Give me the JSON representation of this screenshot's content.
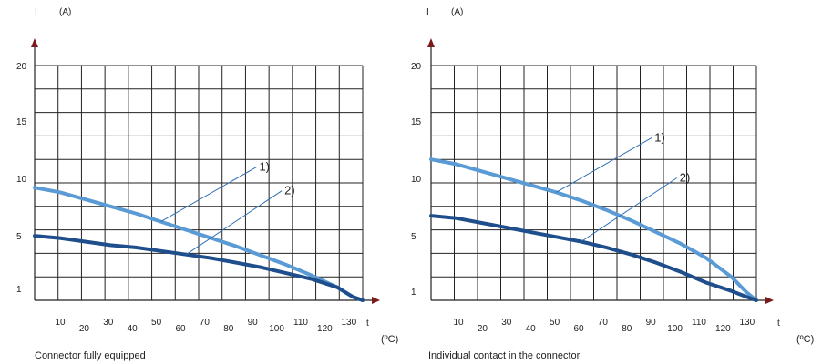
{
  "chart_data": [
    {
      "type": "line",
      "title": "Connector fully equipped",
      "ylabel": "I",
      "yunit": "(A)",
      "xlabel": "t",
      "xunit": "(ºC)",
      "ylim": [
        0,
        20
      ],
      "xlim": [
        0,
        130
      ],
      "ytick_labels": [
        "1",
        "5",
        "10",
        "15",
        "20"
      ],
      "xtick_labels": [
        "10",
        "20",
        "30",
        "40",
        "50",
        "60",
        "70",
        "80",
        "90",
        "100",
        "110",
        "120",
        "130"
      ],
      "grid": true,
      "series": [
        {
          "name": "1)",
          "color": "#5b9bd5",
          "x": [
            0,
            10,
            20,
            30,
            40,
            50,
            60,
            70,
            80,
            90,
            100,
            110,
            120,
            126,
            130
          ],
          "y": [
            9.6,
            9.2,
            8.6,
            8.0,
            7.4,
            6.7,
            6.0,
            5.3,
            4.6,
            3.8,
            3.0,
            2.1,
            1.1,
            0.3,
            0
          ]
        },
        {
          "name": "2)",
          "color": "#1f4e8c",
          "x": [
            0,
            10,
            20,
            30,
            40,
            50,
            60,
            70,
            80,
            90,
            100,
            110,
            120,
            126,
            130
          ],
          "y": [
            5.5,
            5.3,
            5.0,
            4.7,
            4.5,
            4.2,
            3.9,
            3.6,
            3.2,
            2.8,
            2.3,
            1.8,
            1.1,
            0.3,
            0
          ]
        }
      ]
    },
    {
      "type": "line",
      "title": "Individual contact in the connector",
      "ylabel": "I",
      "yunit": "(A)",
      "xlabel": "t",
      "xunit": "(ºC)",
      "ylim": [
        0,
        20
      ],
      "xlim": [
        0,
        130
      ],
      "ytick_labels": [
        "1",
        "5",
        "10",
        "15",
        "20"
      ],
      "xtick_labels": [
        "10",
        "20",
        "30",
        "40",
        "50",
        "60",
        "70",
        "80",
        "90",
        "100",
        "110",
        "120",
        "130"
      ],
      "grid": true,
      "series": [
        {
          "name": "1)",
          "color": "#5b9bd5",
          "x": [
            0,
            10,
            20,
            30,
            40,
            50,
            60,
            70,
            80,
            90,
            100,
            110,
            120,
            126,
            130
          ],
          "y": [
            12.0,
            11.6,
            11.0,
            10.4,
            9.8,
            9.2,
            8.5,
            7.7,
            6.8,
            5.8,
            4.8,
            3.6,
            2.0,
            0.7,
            0
          ]
        },
        {
          "name": "2)",
          "color": "#1f4e8c",
          "x": [
            0,
            10,
            20,
            30,
            40,
            50,
            60,
            70,
            80,
            90,
            100,
            110,
            120,
            126,
            130
          ],
          "y": [
            7.2,
            7.0,
            6.6,
            6.2,
            5.8,
            5.4,
            5.0,
            4.5,
            3.9,
            3.2,
            2.4,
            1.5,
            0.8,
            0.3,
            0
          ]
        }
      ]
    }
  ]
}
